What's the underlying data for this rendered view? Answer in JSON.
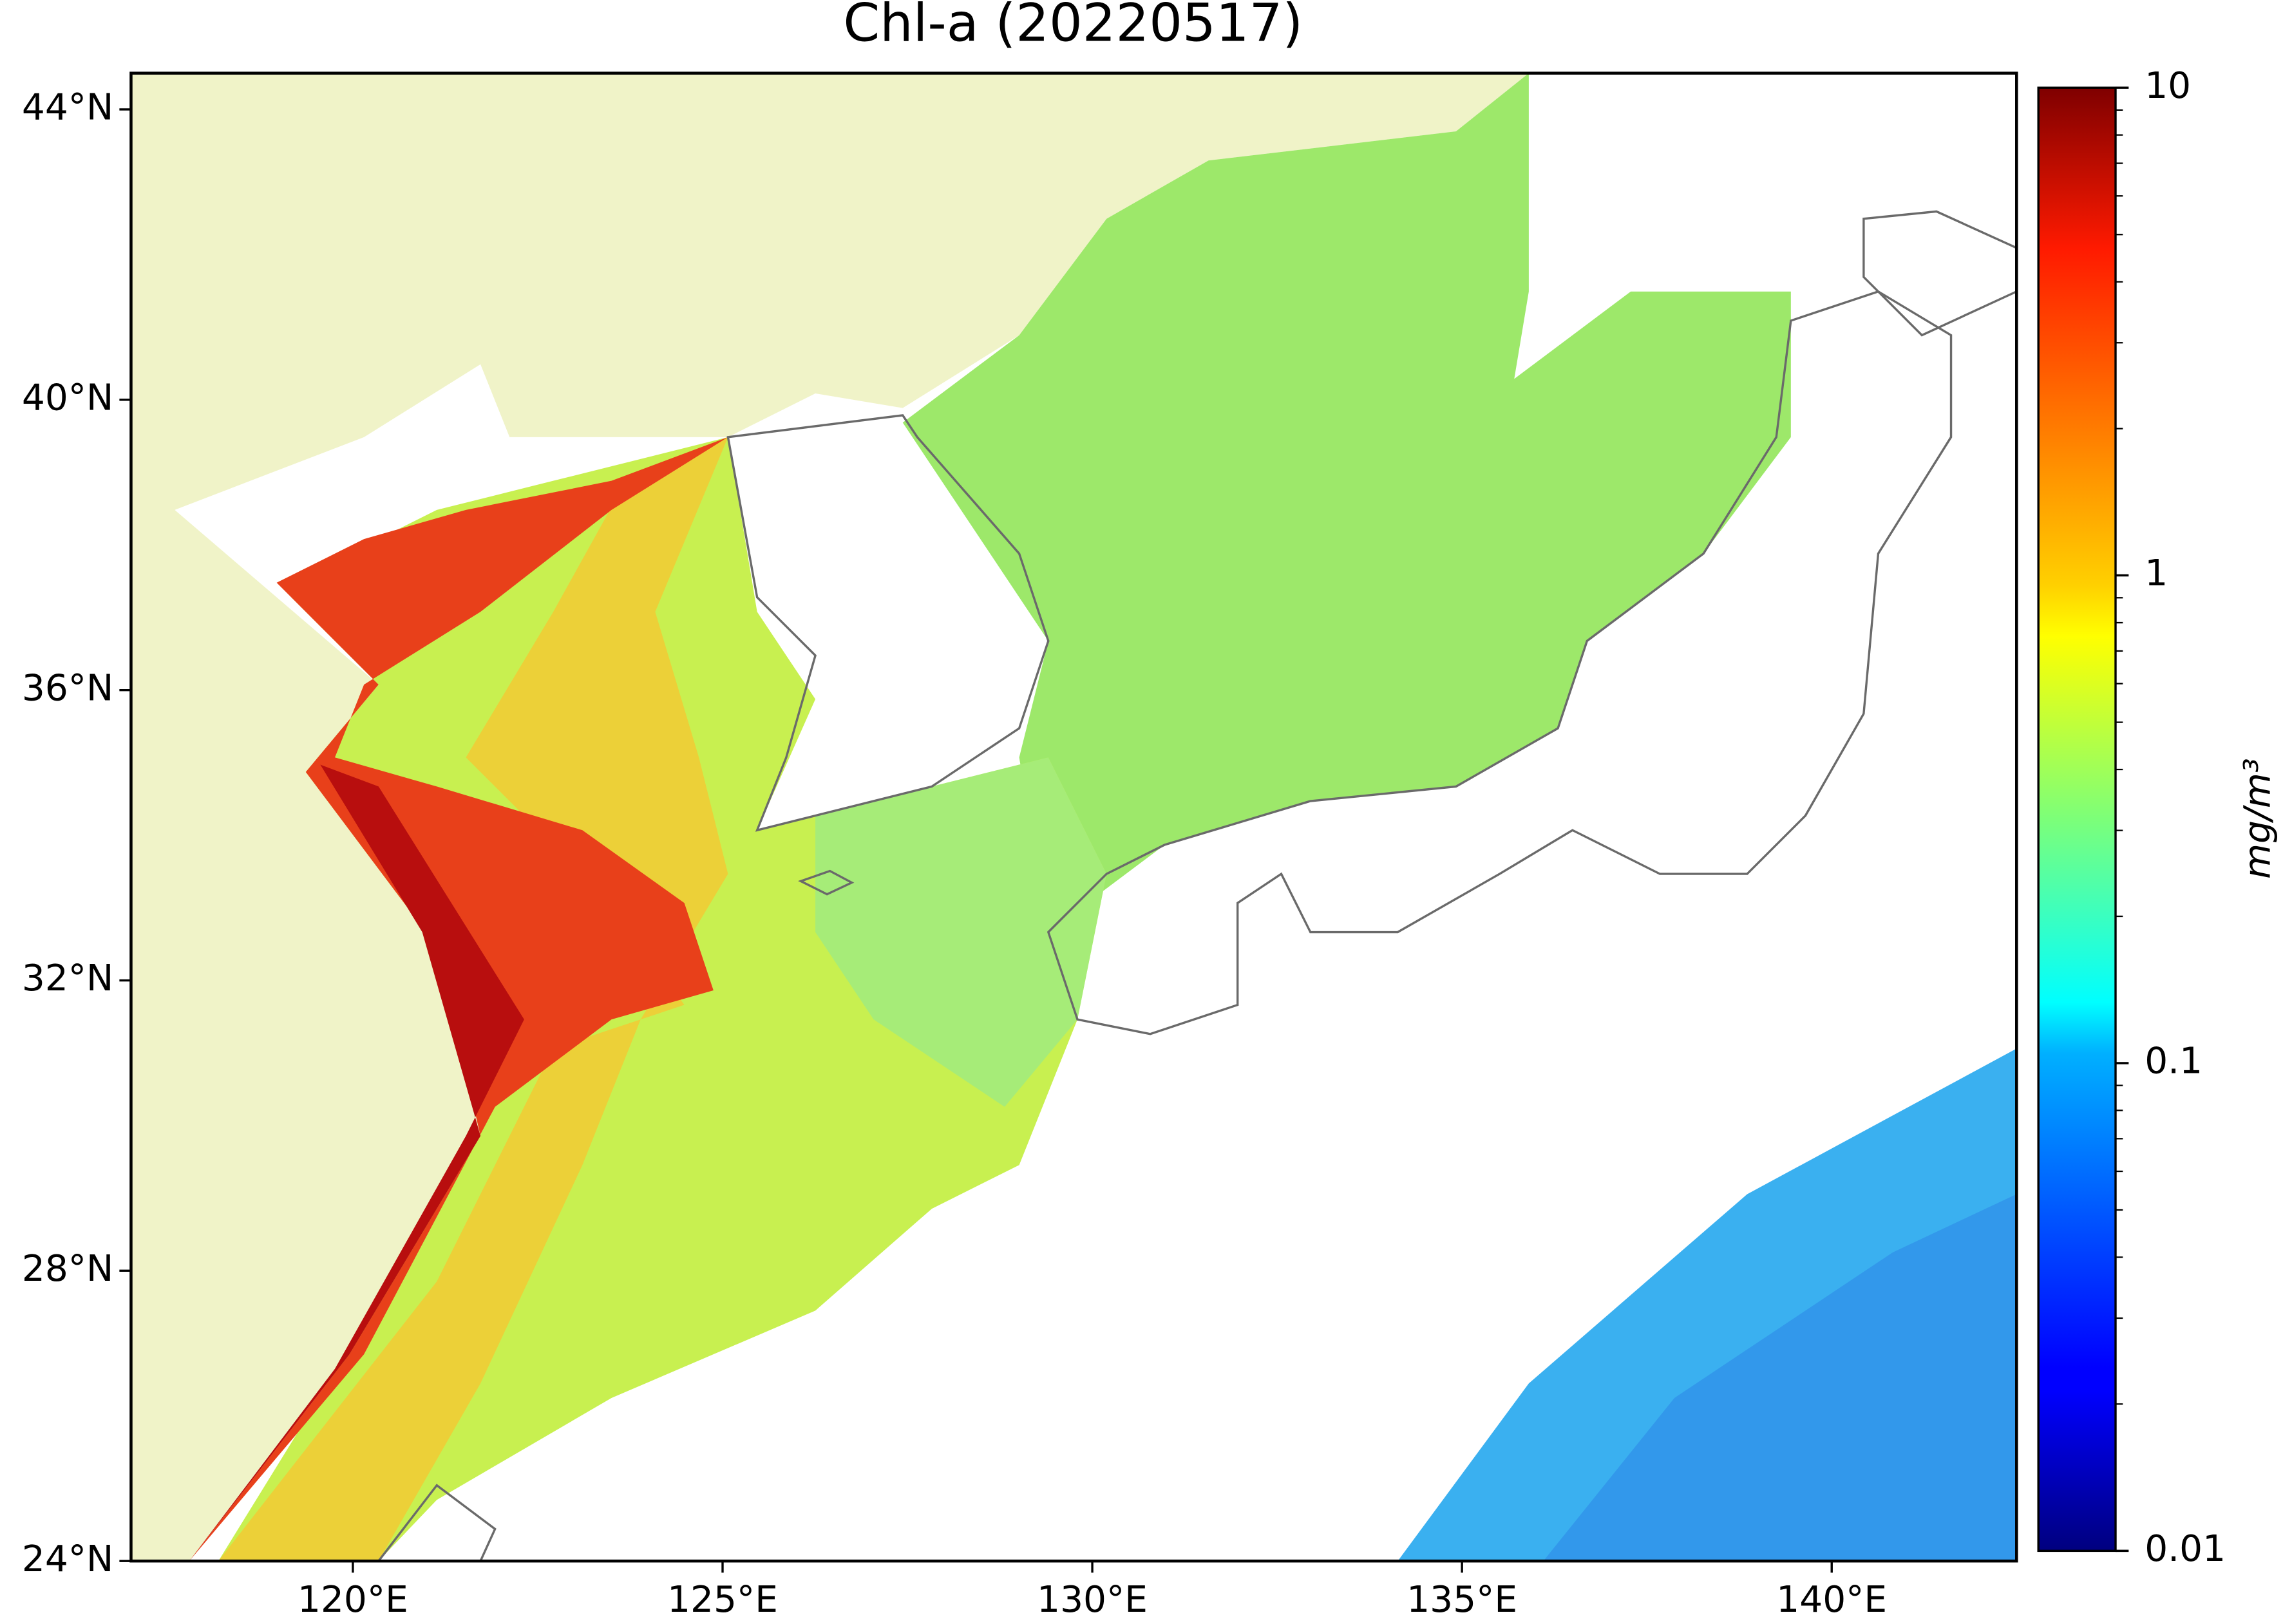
{
  "chart_data": {
    "type": "map",
    "title": "Chl-a (20220517)",
    "xlim": [
      117,
      142.5
    ],
    "ylim": [
      24,
      44.5
    ],
    "xticks": [
      {
        "value": 120,
        "label": "120°E"
      },
      {
        "value": 125,
        "label": "125°E"
      },
      {
        "value": 130,
        "label": "130°E"
      },
      {
        "value": 135,
        "label": "135°E"
      },
      {
        "value": 140,
        "label": "140°E"
      }
    ],
    "yticks": [
      {
        "value": 24,
        "label": "24°N"
      },
      {
        "value": 28,
        "label": "28°N"
      },
      {
        "value": 32,
        "label": "32°N"
      },
      {
        "value": 36,
        "label": "36°N"
      },
      {
        "value": 40,
        "label": "40°N"
      },
      {
        "value": 44,
        "label": "44°N"
      }
    ],
    "colorbar": {
      "scale": "log",
      "colormap": "jet",
      "lim": [
        0.01,
        10
      ],
      "ticks": [
        0.01,
        0.1,
        1,
        10
      ],
      "label": "mg/m³"
    }
  }
}
